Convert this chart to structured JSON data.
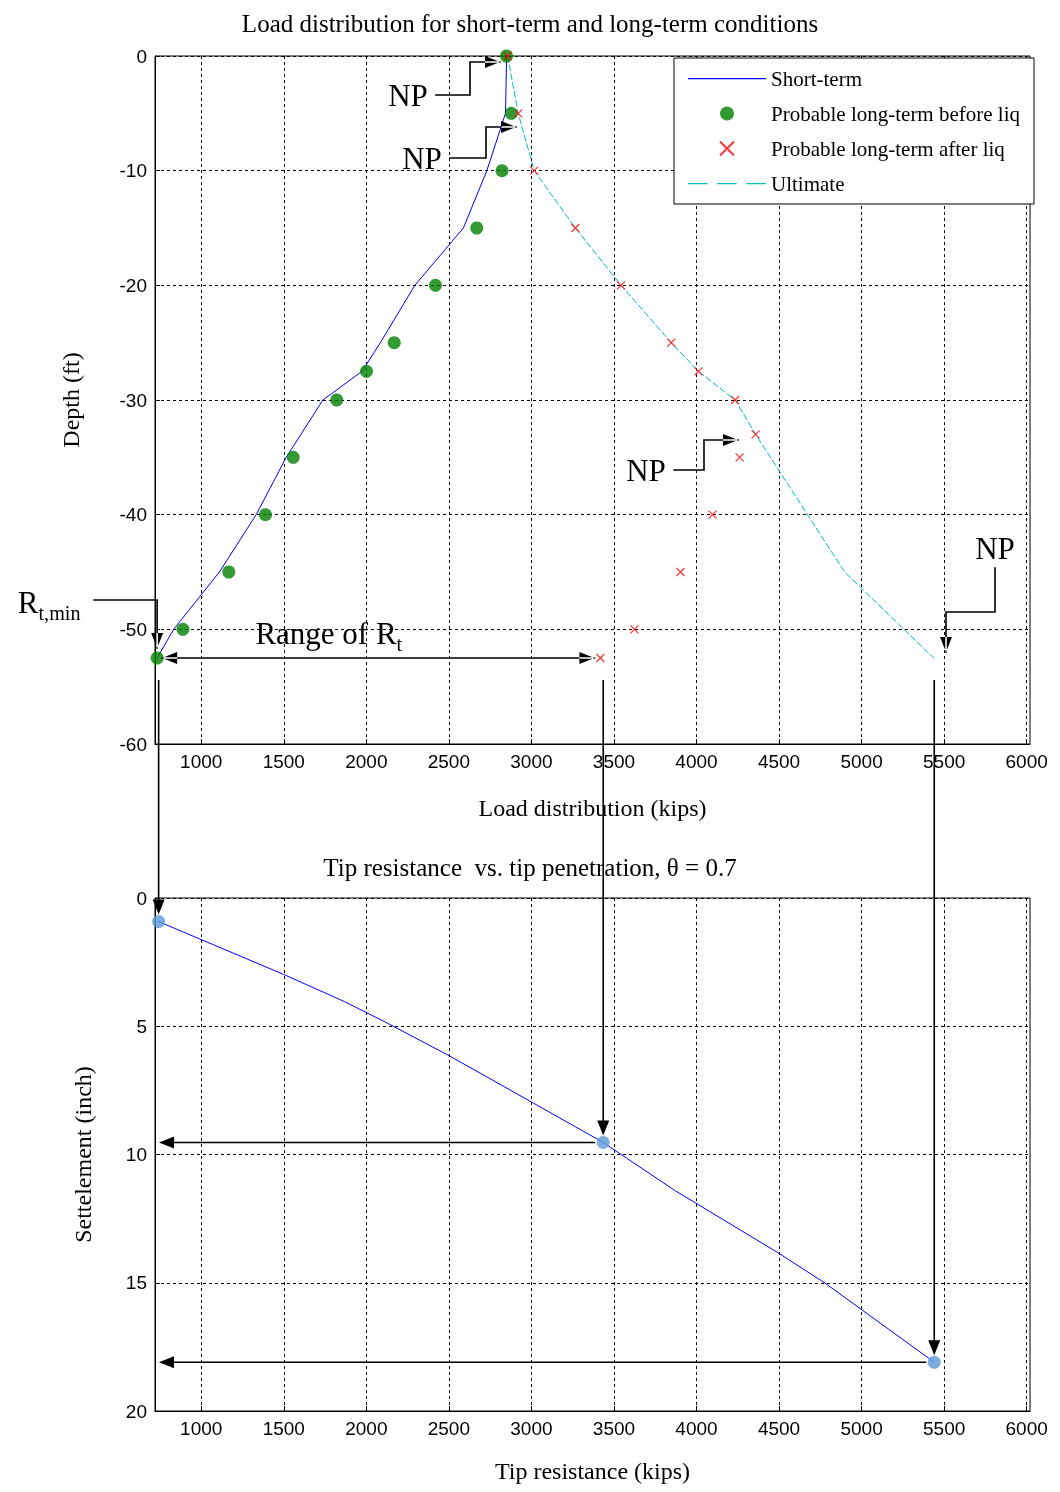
{
  "chart_data": [
    {
      "type": "line",
      "title": "Load distribution for short-term and long-term conditions",
      "xlabel": "Load distribution (kips)",
      "ylabel": "Depth (ft)",
      "xlim": [
        720,
        6020
      ],
      "xticks": [
        1000,
        1500,
        2000,
        2500,
        3000,
        3500,
        4000,
        4500,
        5000,
        5500,
        6000
      ],
      "ylim": [
        -60,
        0
      ],
      "yticks": [
        -60,
        -50,
        -40,
        -30,
        -20,
        -10,
        0
      ],
      "grid": true,
      "legend": "top right",
      "series": [
        {
          "name": "Short-term",
          "type": "line",
          "color": "#0000ff",
          "marker": "none",
          "line_style": "solid",
          "x": [
            2850,
            2843,
            2730,
            2588,
            2294,
            2085,
            1974,
            1737,
            1515,
            1333,
            1110,
            833,
            733
          ],
          "values": [
            0,
            -5,
            -10,
            -15,
            -20,
            -25,
            -27.5,
            -30,
            -35,
            -40,
            -45,
            -50,
            -52.5
          ]
        },
        {
          "name": "Probable long-term before liq",
          "type": "scatter",
          "color": "#008000",
          "marker": "circle",
          "x": [
            2849,
            2878,
            2822,
            2669,
            2419,
            2169,
            2001,
            1821,
            1557,
            1389,
            1167,
            889,
            733
          ],
          "values": [
            0,
            -5,
            -10,
            -15,
            -20,
            -25,
            -27.5,
            -30,
            -35,
            -40,
            -45,
            -50,
            -52.5
          ]
        },
        {
          "name": "Probable long-term after liq",
          "type": "scatter",
          "color": "#ff0000",
          "marker": "cross",
          "x": [
            2856,
            2920,
            3017,
            3266,
            3543,
            3847,
            4012,
            4234,
            4358,
            4261,
            4097,
            3903,
            3624,
            3418
          ],
          "values": [
            0,
            -5,
            -10,
            -15,
            -20,
            -25,
            -27.5,
            -30,
            -33,
            -35,
            -40,
            -45,
            -50,
            -52.5
          ]
        },
        {
          "name": "Ultimate",
          "type": "line",
          "color": "#00bfbf",
          "marker": "none",
          "line_style": "dashed",
          "x": [
            2856,
            2920,
            3017,
            3266,
            3543,
            3847,
            4012,
            4234,
            4358,
            4897,
            5257,
            5437
          ],
          "values": [
            0,
            -5,
            -10,
            -15,
            -20,
            -25,
            -27.5,
            -30,
            -33,
            -45,
            -50,
            -52.5
          ]
        }
      ],
      "annotations": [
        "NP",
        "NP",
        "NP",
        "NP",
        {
          "text": "R$_{t,min}$",
          "x": 733,
          "y": -52.5
        },
        "Range  of R$_{t}$"
      ]
    },
    {
      "type": "line",
      "title": "Tip resistance  vs. tip penetration, θ = 0.7",
      "xlabel": "Tip resistance (kips)",
      "ylabel": "Settelement (inch)",
      "xlim": [
        720,
        6020
      ],
      "xticks": [
        1000,
        1500,
        2000,
        2500,
        3000,
        3500,
        4000,
        4500,
        5000,
        5500,
        6000
      ],
      "ylim": [
        20,
        0
      ],
      "yticks": [
        0,
        5,
        10,
        15,
        20
      ],
      "grid": true,
      "series": [
        {
          "type": "line",
          "color": "#0000ff",
          "marker": "none",
          "x": [
            742,
            1499,
            1868,
            2113,
            2502,
            3013,
            3435,
            3873,
            4486,
            4773,
            5440
          ],
          "values": [
            0.92,
            2.98,
            4.04,
            4.83,
            6.15,
            8.0,
            9.53,
            11.42,
            13.8,
            14.99,
            18.1
          ]
        },
        {
          "type": "scatter",
          "color": "#5b9bd5",
          "marker": "circle",
          "x": [
            742,
            3435,
            5440
          ],
          "values": [
            0.92,
            9.53,
            18.1
          ]
        }
      ]
    }
  ]
}
